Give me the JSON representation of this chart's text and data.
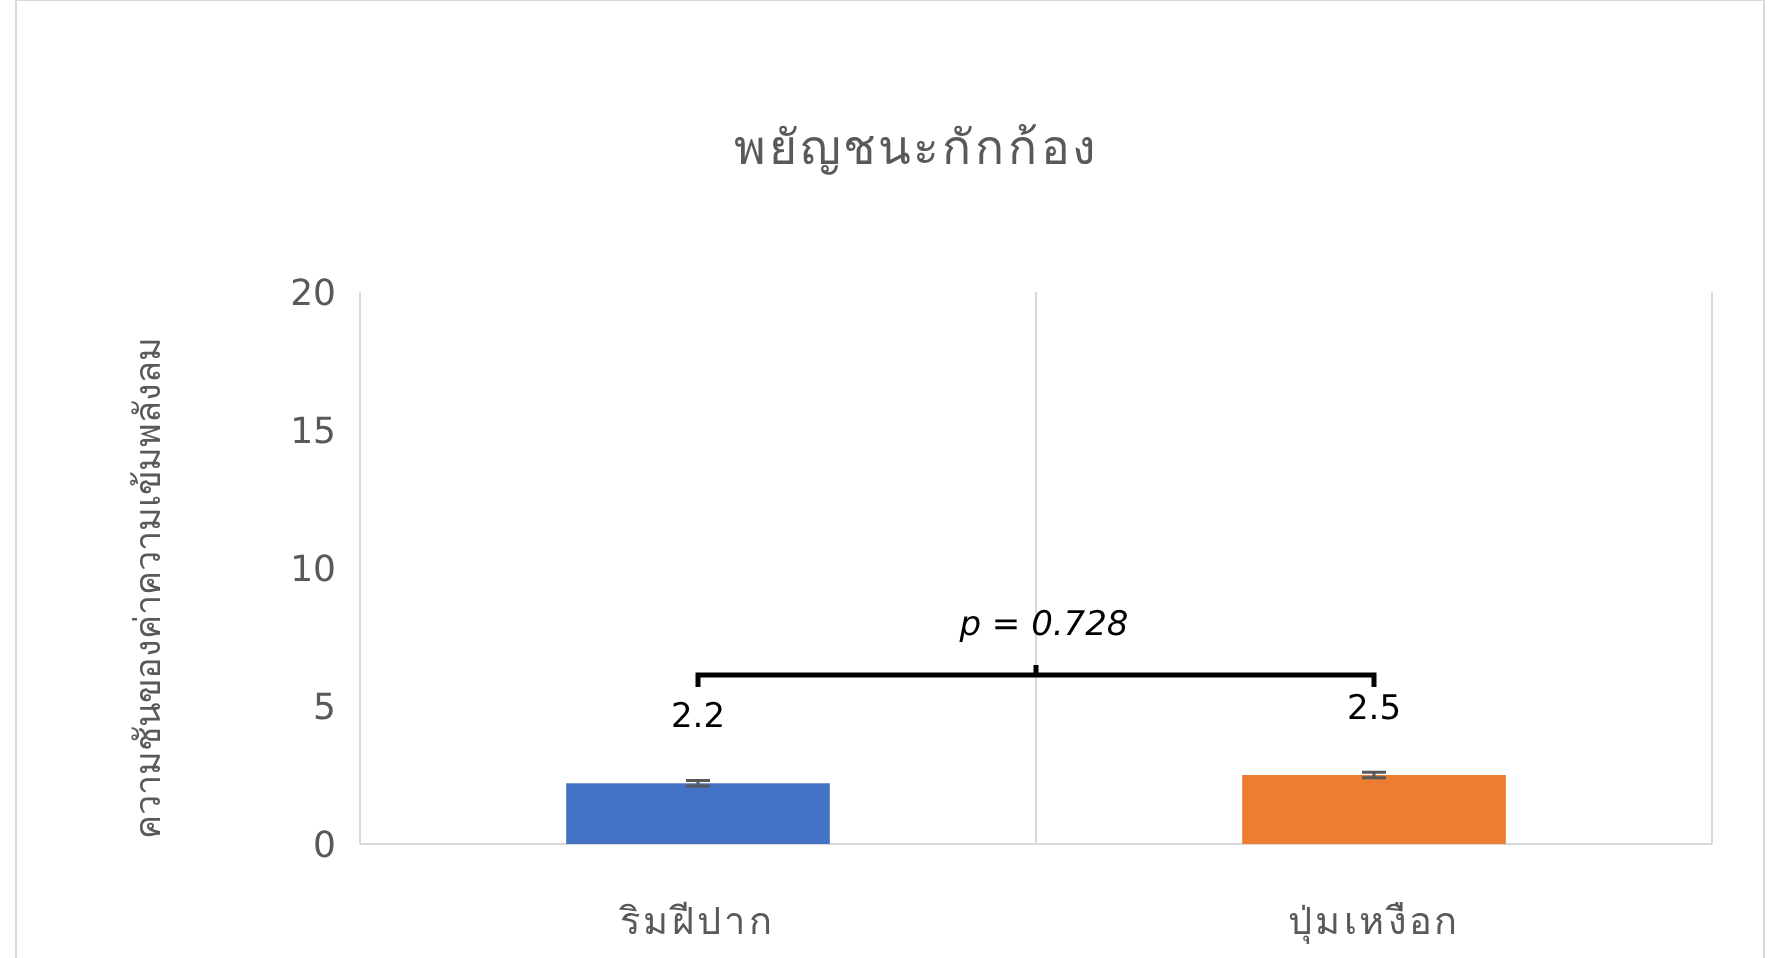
{
  "chart_data": {
    "type": "bar",
    "title": "พยัญชนะกักก้อง",
    "ylabel": "ความชันของค่าความเข้มพลังลม",
    "categories": [
      "ริมฝีปาก",
      "ปุ่มเหงือก"
    ],
    "values": [
      2.2,
      2.5
    ],
    "colors": [
      "#4472c4",
      "#ed7d31"
    ],
    "errors": [
      0.1,
      0.1
    ],
    "data_labels": true,
    "ylim": [
      0,
      20
    ],
    "yticks": [
      0,
      5,
      10,
      15,
      20
    ],
    "grid": "x",
    "annotations": [
      "p = 0.728"
    ]
  }
}
